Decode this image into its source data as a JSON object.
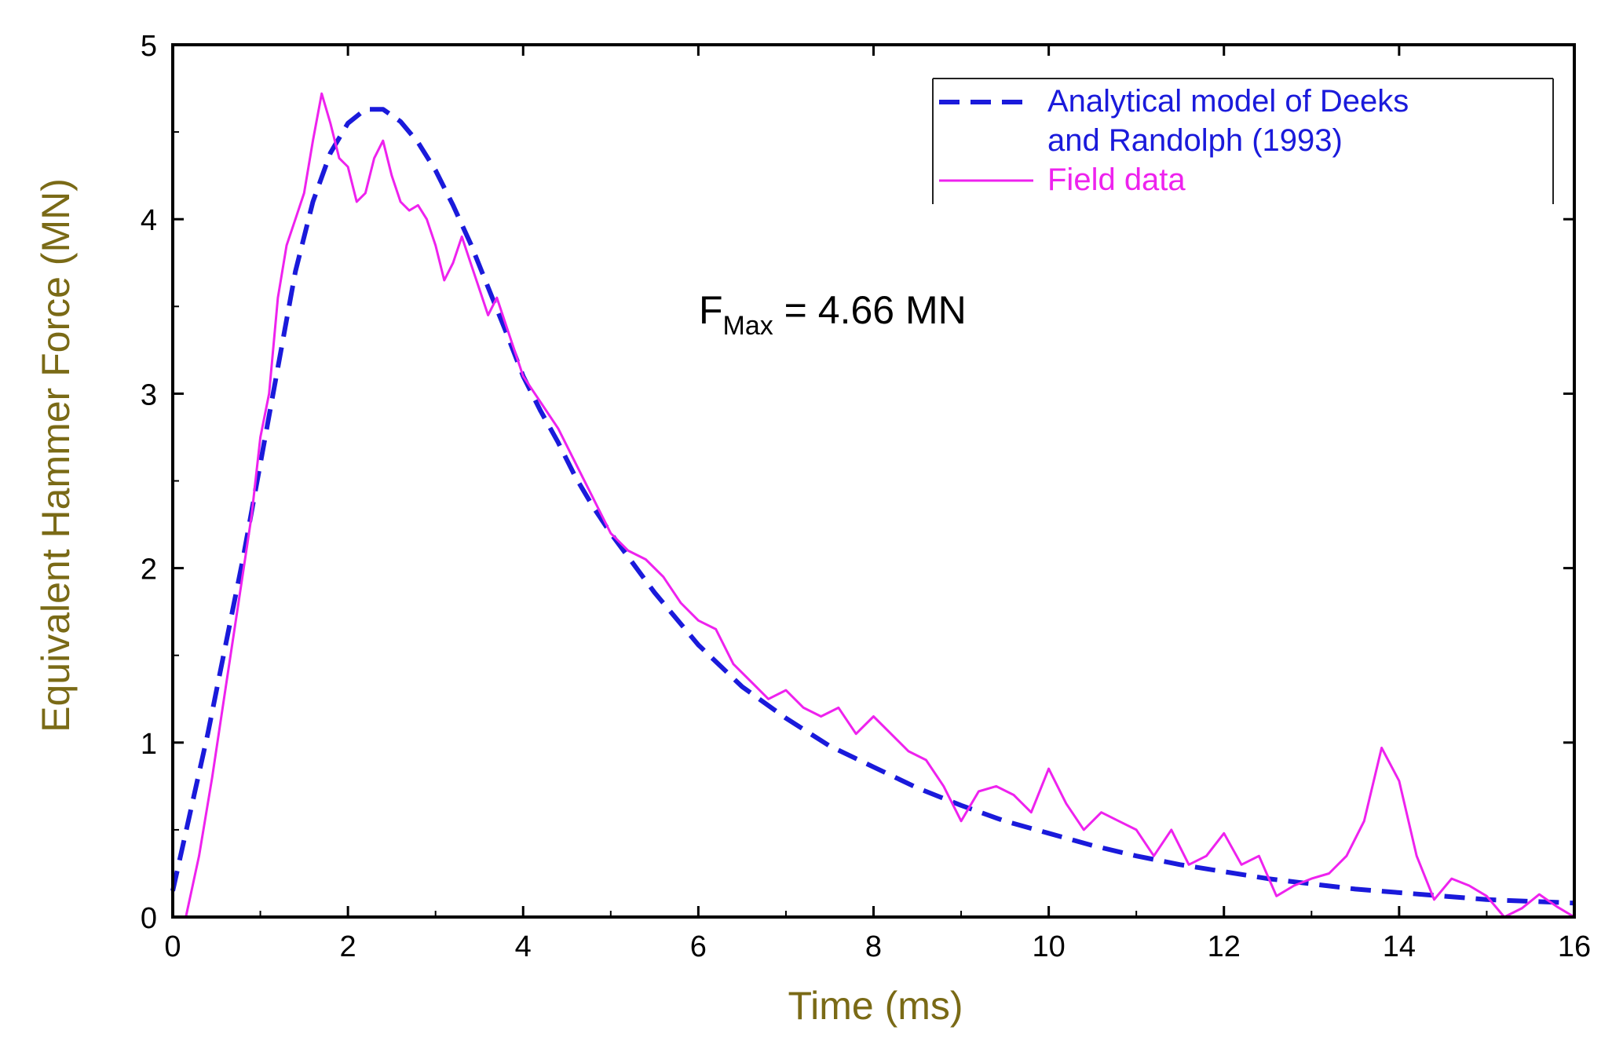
{
  "colors": {
    "axis": "#000000",
    "analytical": "#1a1adb",
    "field": "#ee22ee",
    "axis_title": "#7a6a16"
  },
  "chart_data": {
    "type": "line",
    "xlabel": "Time (ms)",
    "ylabel": "Equivalent Hammer Force (MN)",
    "xlim": [
      0,
      16
    ],
    "ylim": [
      0,
      5
    ],
    "xticks": [
      "0",
      "2",
      "4",
      "6",
      "8",
      "10",
      "12",
      "14",
      "16"
    ],
    "yticks": [
      "0",
      "1",
      "2",
      "3",
      "4",
      "5"
    ],
    "legend_position": "top-right",
    "annotation": {
      "base": "F",
      "sub": "Max",
      "rest": " = 4.66 MN"
    },
    "series": [
      {
        "name": "Analytical model of Deeks and Randolph (1993)",
        "legend_lines": [
          "Analytical model of Deeks",
          "and Randolph (1993)"
        ],
        "style": "dashed",
        "color_key": "analytical",
        "x": [
          0,
          0.2,
          0.4,
          0.6,
          0.8,
          1.0,
          1.2,
          1.4,
          1.6,
          1.8,
          2.0,
          2.2,
          2.4,
          2.6,
          2.8,
          3.0,
          3.2,
          3.4,
          3.6,
          3.8,
          4.0,
          4.2,
          4.4,
          4.6,
          4.8,
          5.0,
          5.5,
          6.0,
          6.5,
          7.0,
          7.5,
          8.0,
          8.5,
          9.0,
          9.5,
          10.0,
          10.5,
          11.0,
          11.5,
          12.0,
          12.5,
          13.0,
          13.5,
          14.0,
          14.5,
          15.0,
          15.5,
          16.0
        ],
        "y": [
          0.15,
          0.6,
          1.05,
          1.55,
          2.05,
          2.6,
          3.15,
          3.7,
          4.1,
          4.38,
          4.55,
          4.63,
          4.63,
          4.56,
          4.44,
          4.28,
          4.08,
          3.86,
          3.61,
          3.36,
          3.1,
          2.9,
          2.72,
          2.52,
          2.35,
          2.2,
          1.86,
          1.56,
          1.32,
          1.14,
          0.98,
          0.86,
          0.74,
          0.64,
          0.55,
          0.48,
          0.41,
          0.35,
          0.3,
          0.26,
          0.22,
          0.19,
          0.16,
          0.14,
          0.12,
          0.1,
          0.09,
          0.08
        ]
      },
      {
        "name": "Field data",
        "legend_lines": [
          "Field data"
        ],
        "style": "solid",
        "color_key": "field",
        "x": [
          0.15,
          0.3,
          0.45,
          0.6,
          0.75,
          0.9,
          1.0,
          1.1,
          1.2,
          1.3,
          1.4,
          1.5,
          1.6,
          1.7,
          1.8,
          1.9,
          2.0,
          2.1,
          2.2,
          2.3,
          2.4,
          2.5,
          2.6,
          2.7,
          2.8,
          2.9,
          3.0,
          3.1,
          3.2,
          3.3,
          3.4,
          3.5,
          3.6,
          3.7,
          3.8,
          3.9,
          4.0,
          4.2,
          4.4,
          4.6,
          4.8,
          5.0,
          5.2,
          5.4,
          5.6,
          5.8,
          6.0,
          6.2,
          6.4,
          6.6,
          6.8,
          7.0,
          7.2,
          7.4,
          7.6,
          7.8,
          8.0,
          8.2,
          8.4,
          8.6,
          8.8,
          9.0,
          9.2,
          9.4,
          9.6,
          9.8,
          10.0,
          10.2,
          10.4,
          10.6,
          10.8,
          11.0,
          11.2,
          11.4,
          11.6,
          11.8,
          12.0,
          12.2,
          12.4,
          12.6,
          12.8,
          13.0,
          13.2,
          13.4,
          13.6,
          13.8,
          14.0,
          14.2,
          14.4,
          14.6,
          14.8,
          15.0,
          15.2,
          15.4,
          15.6,
          15.8,
          16.0
        ],
        "y": [
          0.0,
          0.35,
          0.8,
          1.3,
          1.8,
          2.3,
          2.75,
          3.0,
          3.55,
          3.85,
          4.0,
          4.15,
          4.45,
          4.72,
          4.55,
          4.35,
          4.3,
          4.1,
          4.15,
          4.35,
          4.45,
          4.25,
          4.1,
          4.05,
          4.08,
          4.0,
          3.85,
          3.65,
          3.75,
          3.9,
          3.75,
          3.6,
          3.45,
          3.55,
          3.4,
          3.25,
          3.1,
          2.95,
          2.8,
          2.6,
          2.4,
          2.2,
          2.1,
          2.05,
          1.95,
          1.8,
          1.7,
          1.65,
          1.45,
          1.35,
          1.25,
          1.3,
          1.2,
          1.15,
          1.2,
          1.05,
          1.15,
          1.05,
          0.95,
          0.9,
          0.75,
          0.55,
          0.72,
          0.75,
          0.7,
          0.6,
          0.85,
          0.65,
          0.5,
          0.6,
          0.55,
          0.5,
          0.35,
          0.5,
          0.3,
          0.35,
          0.48,
          0.3,
          0.35,
          0.12,
          0.18,
          0.22,
          0.25,
          0.35,
          0.55,
          0.97,
          0.78,
          0.35,
          0.1,
          0.22,
          0.18,
          0.12,
          0.0,
          0.05,
          0.13,
          0.06,
          0.0
        ]
      }
    ]
  }
}
